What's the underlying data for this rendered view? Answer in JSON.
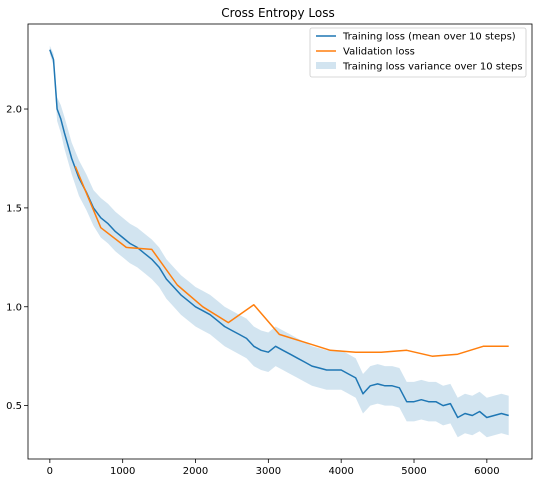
{
  "chart_data": {
    "type": "line",
    "title": "Cross Entropy Loss",
    "xlabel": "",
    "ylabel": "",
    "xlim": [
      -300,
      6620
    ],
    "ylim": [
      0.23,
      2.43
    ],
    "grid": false,
    "legend_position": "top-right",
    "xticks": [
      0,
      1000,
      2000,
      3000,
      4000,
      5000,
      6000
    ],
    "yticks": [
      0.5,
      1.0,
      1.5,
      2.0
    ],
    "xtick_labels": [
      "0",
      "1000",
      "2000",
      "3000",
      "4000",
      "5000",
      "6000"
    ],
    "ytick_labels": [
      "0.5",
      "1.0",
      "1.5",
      "2.0"
    ],
    "series": [
      {
        "name": "Training loss (mean over 10 steps)",
        "kind": "line",
        "color": "#1f77b4",
        "x": [
          0,
          50,
          100,
          150,
          200,
          300,
          400,
          500,
          600,
          700,
          800,
          900,
          1000,
          1100,
          1200,
          1300,
          1400,
          1500,
          1600,
          1700,
          1800,
          1900,
          2000,
          2100,
          2200,
          2300,
          2400,
          2500,
          2600,
          2700,
          2800,
          2900,
          3000,
          3100,
          3200,
          3300,
          3400,
          3500,
          3600,
          3700,
          3800,
          3900,
          4000,
          4100,
          4200,
          4300,
          4400,
          4500,
          4600,
          4700,
          4800,
          4900,
          5000,
          5100,
          5200,
          5300,
          5400,
          5500,
          5600,
          5700,
          5800,
          5900,
          6000,
          6100,
          6200,
          6300
        ],
        "values": [
          2.3,
          2.25,
          2.0,
          1.95,
          1.88,
          1.75,
          1.65,
          1.58,
          1.5,
          1.45,
          1.42,
          1.38,
          1.35,
          1.32,
          1.3,
          1.27,
          1.24,
          1.2,
          1.14,
          1.1,
          1.06,
          1.03,
          1.0,
          0.98,
          0.96,
          0.93,
          0.9,
          0.88,
          0.86,
          0.84,
          0.8,
          0.78,
          0.77,
          0.8,
          0.78,
          0.76,
          0.74,
          0.72,
          0.7,
          0.69,
          0.68,
          0.68,
          0.68,
          0.66,
          0.64,
          0.56,
          0.6,
          0.61,
          0.6,
          0.6,
          0.59,
          0.52,
          0.52,
          0.53,
          0.52,
          0.52,
          0.5,
          0.51,
          0.44,
          0.46,
          0.45,
          0.47,
          0.44,
          0.45,
          0.46,
          0.45
        ]
      },
      {
        "name": "Validation loss",
        "kind": "line",
        "color": "#ff7f0e",
        "x": [
          350,
          700,
          1050,
          1400,
          1750,
          2100,
          2450,
          2800,
          3150,
          3500,
          3850,
          4200,
          4550,
          4900,
          5250,
          5600,
          5950,
          6300
        ],
        "values": [
          1.71,
          1.4,
          1.3,
          1.29,
          1.11,
          1.0,
          0.92,
          1.01,
          0.86,
          0.82,
          0.78,
          0.77,
          0.77,
          0.78,
          0.75,
          0.76,
          0.8,
          0.8
        ]
      },
      {
        "name": "Training loss variance over 10 steps",
        "kind": "band",
        "color": "#1f77b4",
        "opacity": 0.2,
        "band_halfwidth": [
          0.02,
          0.03,
          0.06,
          0.07,
          0.08,
          0.08,
          0.09,
          0.09,
          0.09,
          0.1,
          0.1,
          0.1,
          0.1,
          0.1,
          0.1,
          0.1,
          0.1,
          0.1,
          0.1,
          0.1,
          0.1,
          0.1,
          0.1,
          0.1,
          0.1,
          0.1,
          0.1,
          0.1,
          0.1,
          0.1,
          0.1,
          0.1,
          0.1,
          0.1,
          0.1,
          0.1,
          0.1,
          0.1,
          0.1,
          0.1,
          0.1,
          0.1,
          0.1,
          0.1,
          0.1,
          0.1,
          0.1,
          0.1,
          0.1,
          0.1,
          0.1,
          0.1,
          0.1,
          0.1,
          0.1,
          0.1,
          0.1,
          0.1,
          0.1,
          0.1,
          0.1,
          0.1,
          0.1,
          0.1,
          0.1,
          0.1
        ]
      }
    ]
  }
}
